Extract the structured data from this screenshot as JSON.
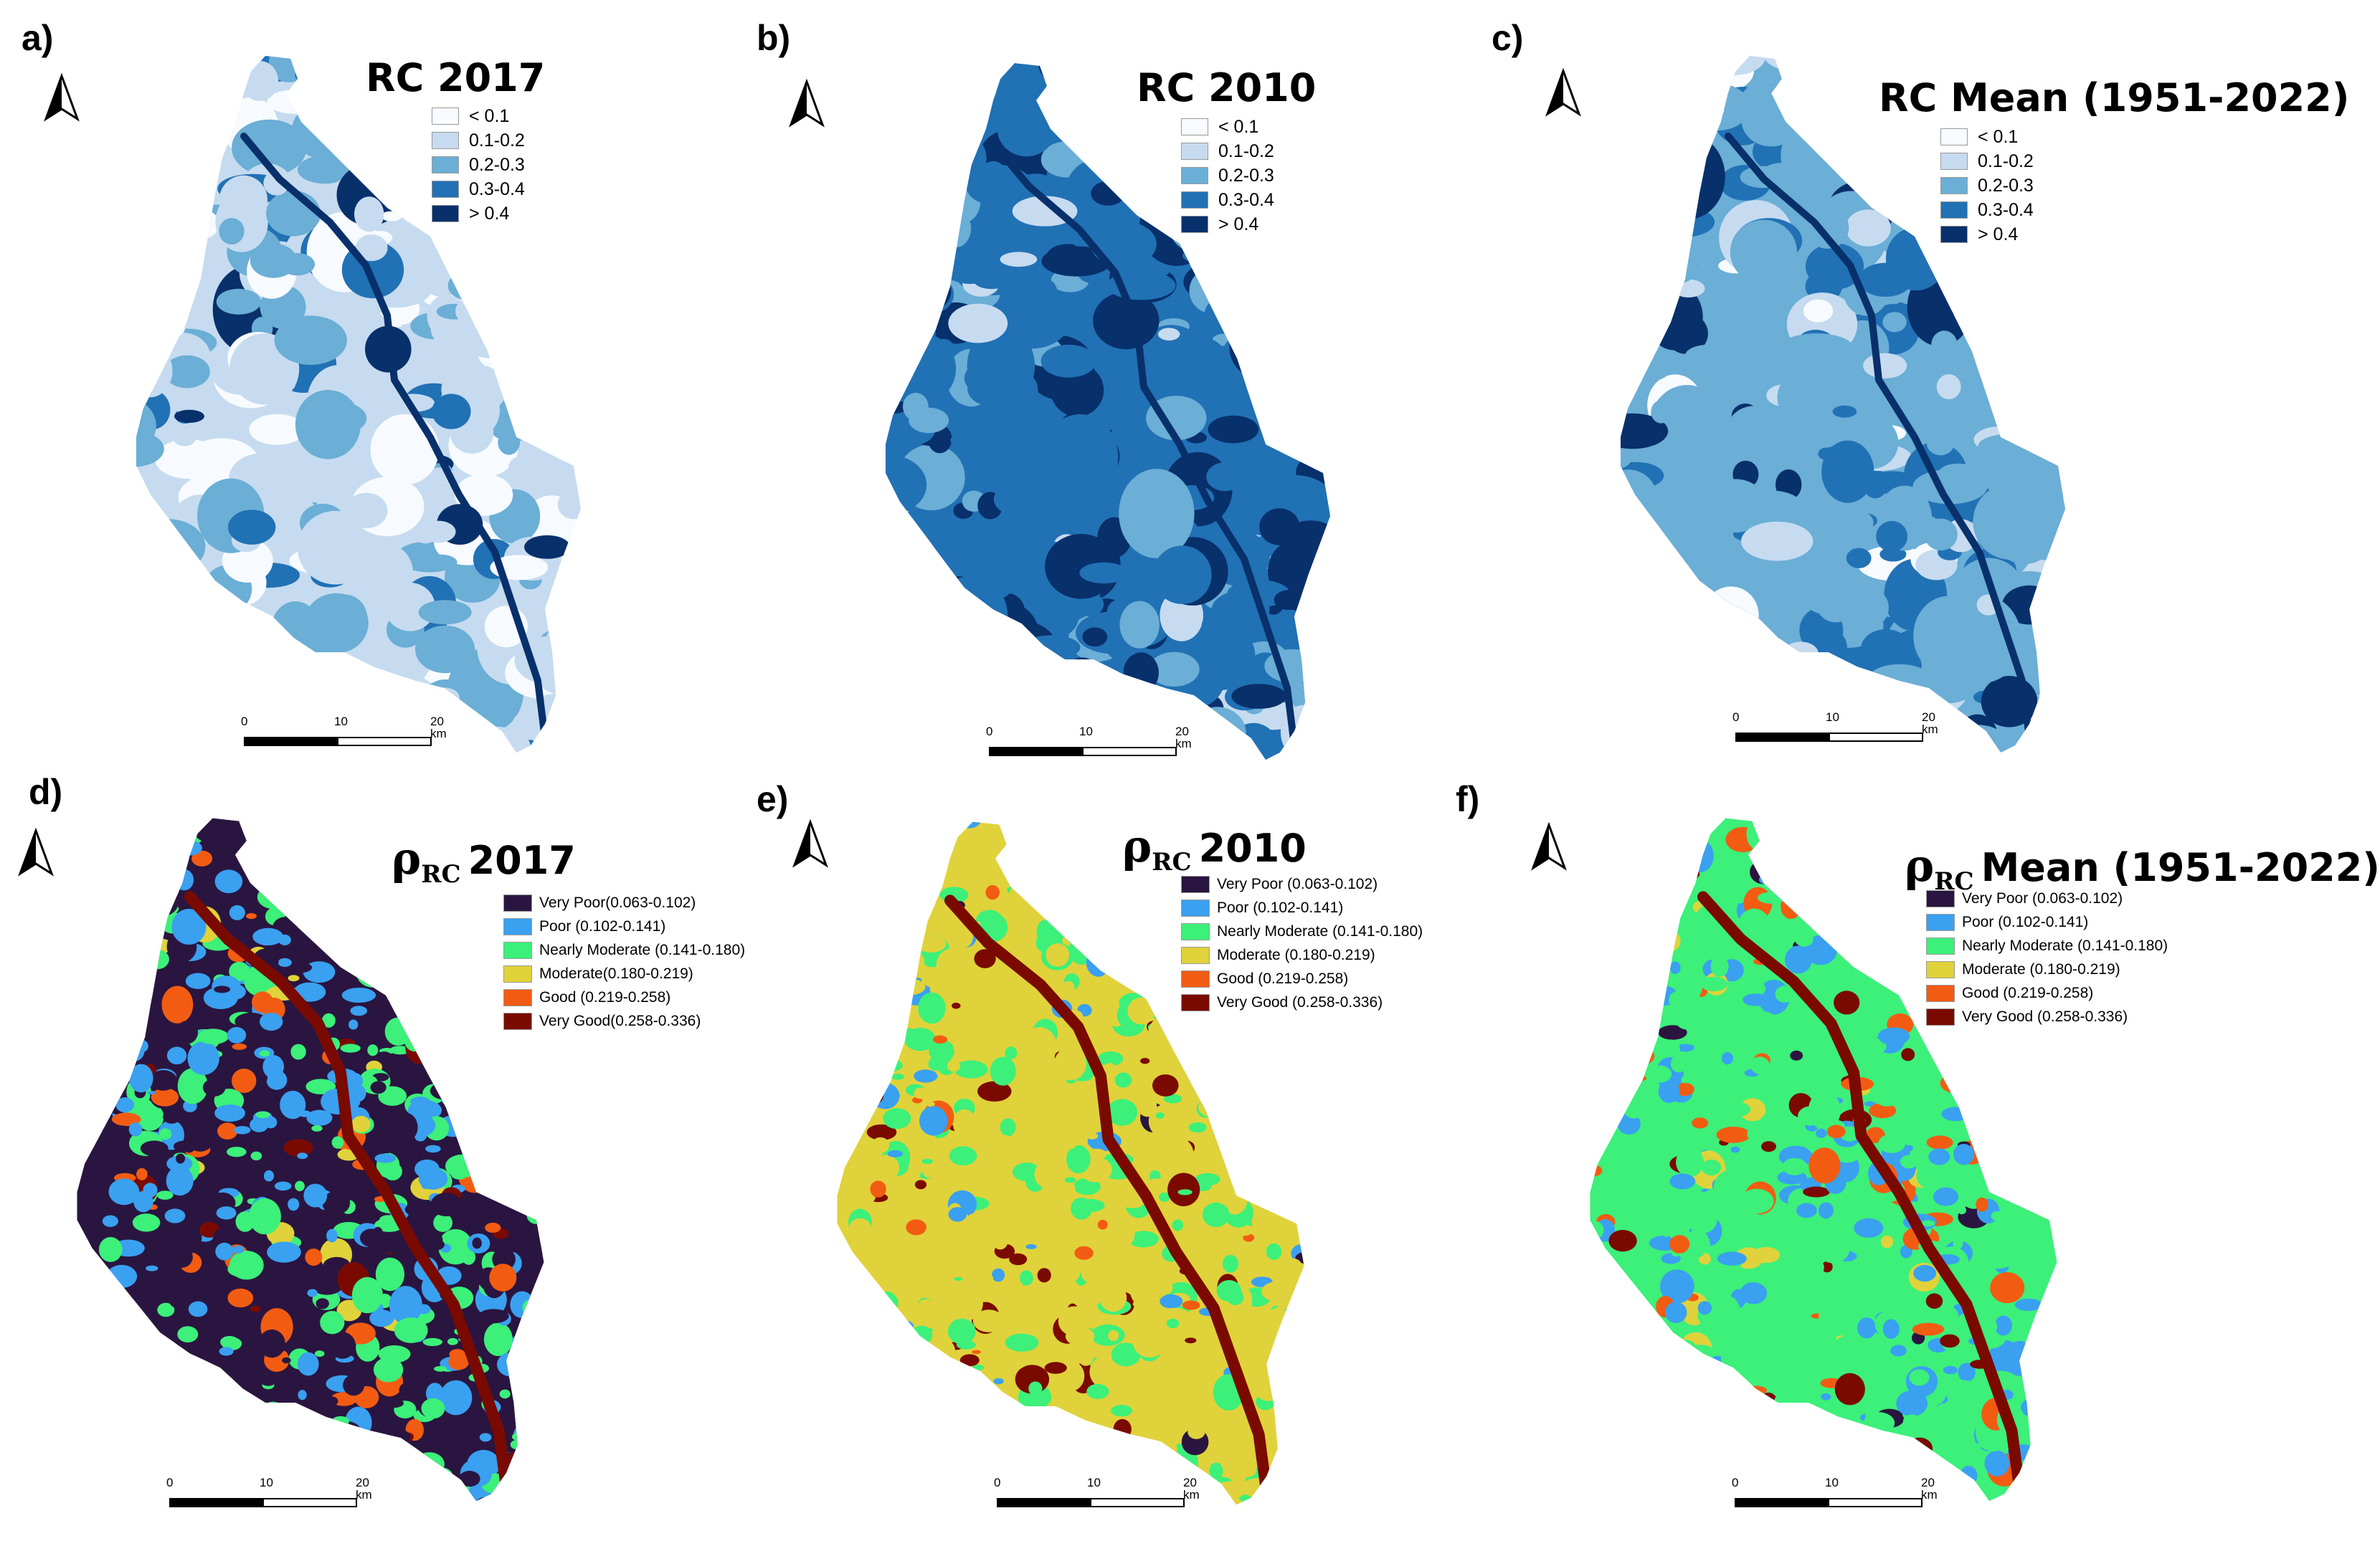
{
  "figure": {
    "panels": [
      {
        "id": "a",
        "label": "a)",
        "title": "RC 2017",
        "kind": "rc",
        "palette": [
          "#f7fbff",
          "#c6dbef",
          "#6baed6",
          "#2171b5",
          "#08306b"
        ],
        "weights": [
          0.18,
          0.48,
          0.24,
          0.07,
          0.03
        ]
      },
      {
        "id": "b",
        "label": "b)",
        "title": "RC 2010",
        "kind": "rc",
        "palette": [
          "#f7fbff",
          "#c6dbef",
          "#6baed6",
          "#2171b5",
          "#08306b"
        ],
        "weights": [
          0.0,
          0.05,
          0.15,
          0.6,
          0.2
        ]
      },
      {
        "id": "c",
        "label": "c)",
        "title": "RC Mean (1951-2022)",
        "kind": "rc",
        "palette": [
          "#f7fbff",
          "#c6dbef",
          "#6baed6",
          "#2171b5",
          "#08306b"
        ],
        "weights": [
          0.03,
          0.12,
          0.6,
          0.2,
          0.05
        ]
      },
      {
        "id": "d",
        "label": "d)",
        "title_symbol": "ρ",
        "title_subscript": "RC",
        "title_suffix": "2017",
        "kind": "rho",
        "palette": [
          "#2a1540",
          "#3aa0f0",
          "#3cf07a",
          "#e0d23a",
          "#f25c12",
          "#7a0a00"
        ],
        "weights": [
          0.3,
          0.3,
          0.3,
          0.02,
          0.05,
          0.03
        ]
      },
      {
        "id": "e",
        "label": "e)",
        "title_symbol": "ρ",
        "title_subscript": "RC",
        "title_suffix": "2010",
        "kind": "rho",
        "palette": [
          "#2a1540",
          "#3aa0f0",
          "#3cf07a",
          "#e0d23a",
          "#f25c12",
          "#7a0a00"
        ],
        "weights": [
          0.01,
          0.05,
          0.26,
          0.6,
          0.02,
          0.06
        ]
      },
      {
        "id": "f",
        "label": "f)",
        "title_symbol": "ρ",
        "title_subscript": "RC",
        "title_suffix": "Mean (1951-2022)",
        "kind": "rho",
        "palette": [
          "#2a1540",
          "#3aa0f0",
          "#3cf07a",
          "#e0d23a",
          "#f25c12",
          "#7a0a00"
        ],
        "weights": [
          0.02,
          0.25,
          0.58,
          0.03,
          0.08,
          0.04
        ]
      }
    ],
    "rc_legend": {
      "items": [
        {
          "label": "< 0.1",
          "color": "#f7fbff"
        },
        {
          "label": "0.1-0.2",
          "color": "#c6dbef"
        },
        {
          "label": "0.2-0.3",
          "color": "#6baed6"
        },
        {
          "label": "0.3-0.4",
          "color": "#2171b5"
        },
        {
          "label": "> 0.4",
          "color": "#08306b"
        }
      ]
    },
    "rho_legend_d": {
      "items": [
        {
          "label": "Very Poor(0.063-0.102)",
          "color": "#2a1540"
        },
        {
          "label": "Poor (0.102-0.141)",
          "color": "#3aa0f0"
        },
        {
          "label": "Nearly Moderate (0.141-0.180)",
          "color": "#3cf07a"
        },
        {
          "label": "Moderate(0.180-0.219)",
          "color": "#e0d23a"
        },
        {
          "label": "Good (0.219-0.258)",
          "color": "#f25c12"
        },
        {
          "label": "Very Good(0.258-0.336)",
          "color": "#7a0a00"
        }
      ]
    },
    "rho_legend_ef": {
      "items": [
        {
          "label": "Very Poor (0.063-0.102)",
          "color": "#2a1540"
        },
        {
          "label": "Poor (0.102-0.141)",
          "color": "#3aa0f0"
        },
        {
          "label": "Nearly Moderate (0.141-0.180)",
          "color": "#3cf07a"
        },
        {
          "label": "Moderate (0.180-0.219)",
          "color": "#e0d23a"
        },
        {
          "label": "Good (0.219-0.258)",
          "color": "#f25c12"
        },
        {
          "label": "Very Good (0.258-0.336)",
          "color": "#7a0a00"
        }
      ]
    },
    "scale_bar": {
      "ticks": [
        "0",
        "10",
        "20 km"
      ]
    },
    "icons": {
      "north_arrow": "north-arrow-icon"
    }
  }
}
